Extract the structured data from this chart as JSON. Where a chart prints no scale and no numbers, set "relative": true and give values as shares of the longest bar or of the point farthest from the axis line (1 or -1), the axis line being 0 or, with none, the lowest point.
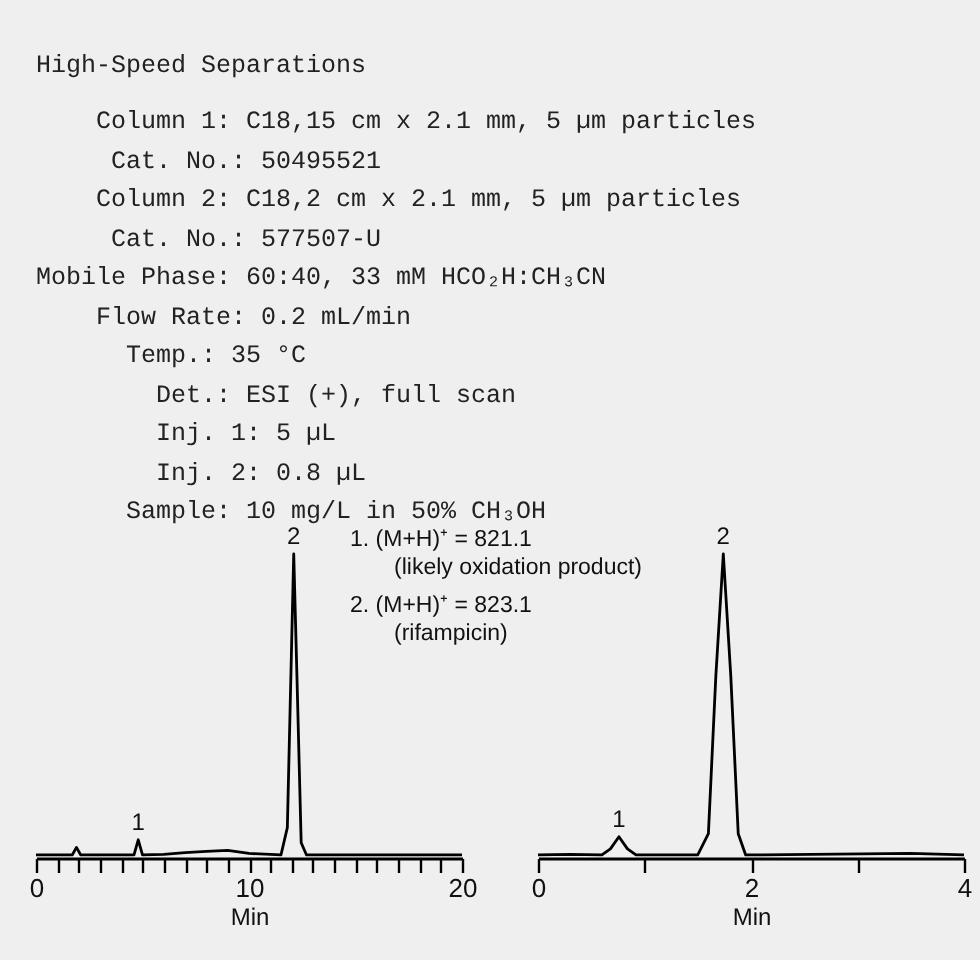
{
  "chart_data": [
    {
      "type": "line",
      "title": "High-Speed Separations",
      "relative": true,
      "xlabel": "Min",
      "xlim": [
        0,
        20
      ],
      "xticks": [
        0,
        {
          "value": 1,
          "label": null
        },
        {
          "value": 2,
          "label": null
        },
        {
          "value": 3,
          "label": null
        },
        {
          "value": 4,
          "label": null
        },
        {
          "value": 5,
          "label": null
        },
        {
          "value": 6,
          "label": null
        },
        {
          "value": 7,
          "label": null
        },
        {
          "value": 8,
          "label": null
        },
        {
          "value": 9,
          "label": null
        },
        10,
        {
          "value": 11,
          "label": null
        },
        {
          "value": 12,
          "label": null
        },
        {
          "value": 13,
          "label": null
        },
        {
          "value": 14,
          "label": null
        },
        {
          "value": 15,
          "label": null
        },
        {
          "value": 16,
          "label": null
        },
        {
          "value": 17,
          "label": null
        },
        {
          "value": 18,
          "label": null
        },
        {
          "value": 19,
          "label": null
        },
        20
      ],
      "grid": false,
      "marker": "none",
      "line_style": "solid",
      "annotations": [
        "Column 1: C18,15 cm x 2.1 mm, 5 µm particles",
        "Cat. No.: 50495521",
        "Column 2: C18,2 cm x 2.1 mm, 5 µm particles",
        "Cat. No.: 577507-U",
        "Mobile Phase: 60:40, 33 mM HCO₂H:CH₃CN",
        "Flow Rate: 0.2 mL/min",
        "Temp.: 35 °C",
        "Det.: ESI (+), full scan",
        "Inj. 1: 5 µL",
        "Inj. 2: 0.8 µL",
        "Sample: 10 mg/L in 50% CH₃OH",
        {
          "text": "1",
          "x": 4.8,
          "y": 0.06
        },
        {
          "text": "2",
          "x": 12.1,
          "y": 1
        }
      ],
      "series": [
        {
          "color": "#000000",
          "x": [
            0,
            1,
            1.7,
            1.9,
            2.1,
            4.6,
            4.8,
            5.0,
            6,
            7,
            8,
            9,
            10,
            11.5,
            11.8,
            12.0,
            12.1,
            12.25,
            12.45,
            12.7,
            15,
            20
          ],
          "values": [
            0.01,
            0.01,
            0.01,
            0.035,
            0.01,
            0.01,
            0.06,
            0.01,
            0.012,
            0.018,
            0.022,
            0.025,
            0.015,
            0.01,
            0.1,
            0.7,
            1,
            0.6,
            0.05,
            0.01,
            0.01,
            0.01
          ]
        }
      ]
    },
    {
      "type": "line",
      "relative": true,
      "xlabel": "Min",
      "xlim": [
        0,
        4
      ],
      "xticks": [
        0,
        {
          "value": 1,
          "label": null
        },
        2,
        {
          "value": 3,
          "label": null
        },
        4
      ],
      "grid": false,
      "marker": "none",
      "line_style": "solid",
      "annotations": [
        "1.  (M+H)⁺ = 821.1",
        "(likely oxidation product)",
        "2.  (M+H)⁺ = 823.1",
        "(rifampicin)",
        {
          "text": "1",
          "x": 0.76,
          "y": 0.07
        },
        {
          "text": "2",
          "x": 1.74,
          "y": 1
        }
      ],
      "series": [
        {
          "color": "#000000",
          "x": [
            0,
            0.3,
            0.6,
            0.68,
            0.76,
            0.84,
            0.92,
            1.5,
            1.6,
            1.67,
            1.74,
            1.81,
            1.88,
            1.95,
            3.5,
            4
          ],
          "values": [
            0.01,
            0.012,
            0.01,
            0.03,
            0.07,
            0.03,
            0.01,
            0.01,
            0.08,
            0.6,
            1,
            0.6,
            0.08,
            0.01,
            0.015,
            0.01
          ]
        }
      ]
    }
  ]
}
